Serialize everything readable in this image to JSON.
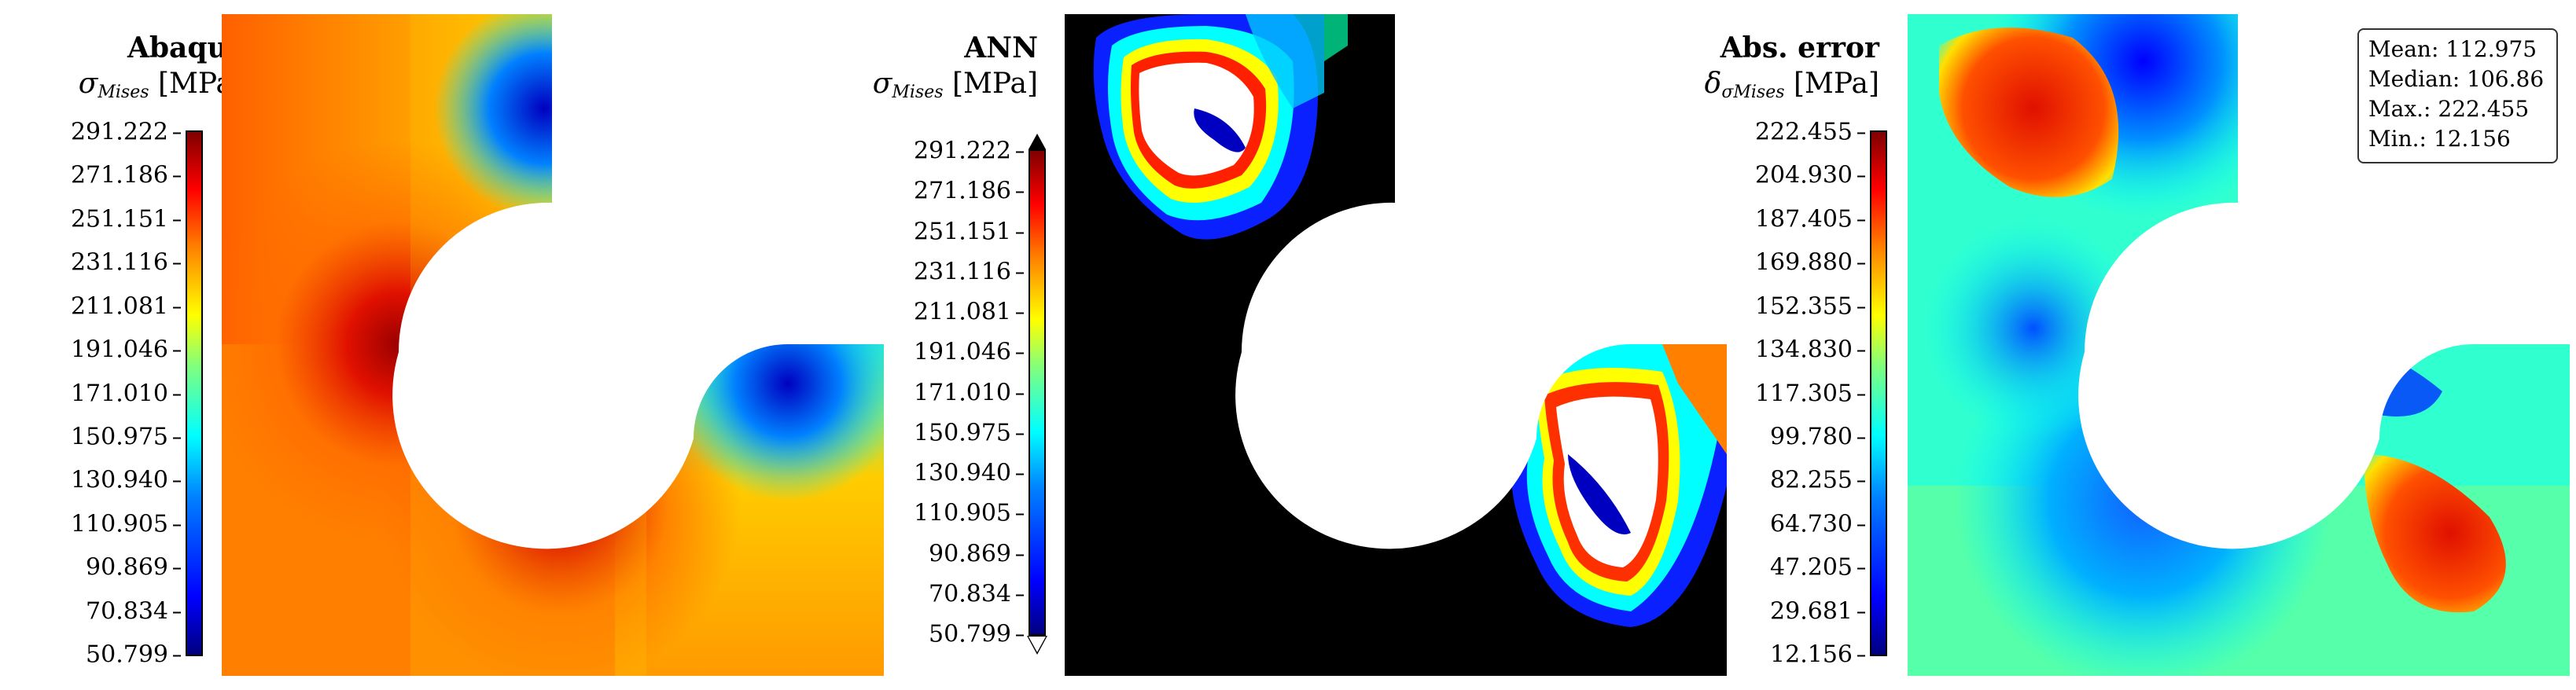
{
  "panels": [
    {
      "title": "Abaqus",
      "quantity_symbol": "σ",
      "quantity_sub": "Mises",
      "unit": "[MPa]",
      "colorbar_ticks": [
        "291.222",
        "271.186",
        "251.151",
        "231.116",
        "211.081",
        "191.046",
        "171.010",
        "150.975",
        "130.940",
        "110.905",
        "90.869",
        "70.834",
        "50.799"
      ]
    },
    {
      "title": "ANN",
      "quantity_symbol": "σ",
      "quantity_sub": "Mises",
      "unit": "[MPa]",
      "colorbar_ticks": [
        "291.222",
        "271.186",
        "251.151",
        "231.116",
        "211.081",
        "191.046",
        "171.010",
        "150.975",
        "130.940",
        "110.905",
        "90.869",
        "70.834",
        "50.799"
      ]
    },
    {
      "title": "Abs. error",
      "quantity_symbol": "δ",
      "quantity_sub": "σMises",
      "unit": "[MPa]",
      "colorbar_ticks": [
        "222.455",
        "204.930",
        "187.405",
        "169.880",
        "152.355",
        "134.830",
        "117.305",
        "99.780",
        "82.255",
        "64.730",
        "47.205",
        "29.681",
        "12.156"
      ]
    }
  ],
  "stats": {
    "mean": "Mean: 112.975",
    "median": "Median: 106.86",
    "max": "Max.: 222.455",
    "min": "Min.: 12.156"
  },
  "colormap": [
    "#00007f",
    "#0000ff",
    "#0080ff",
    "#00ffff",
    "#7fff7f",
    "#ffff00",
    "#ff8000",
    "#ff0000",
    "#7f0000"
  ]
}
